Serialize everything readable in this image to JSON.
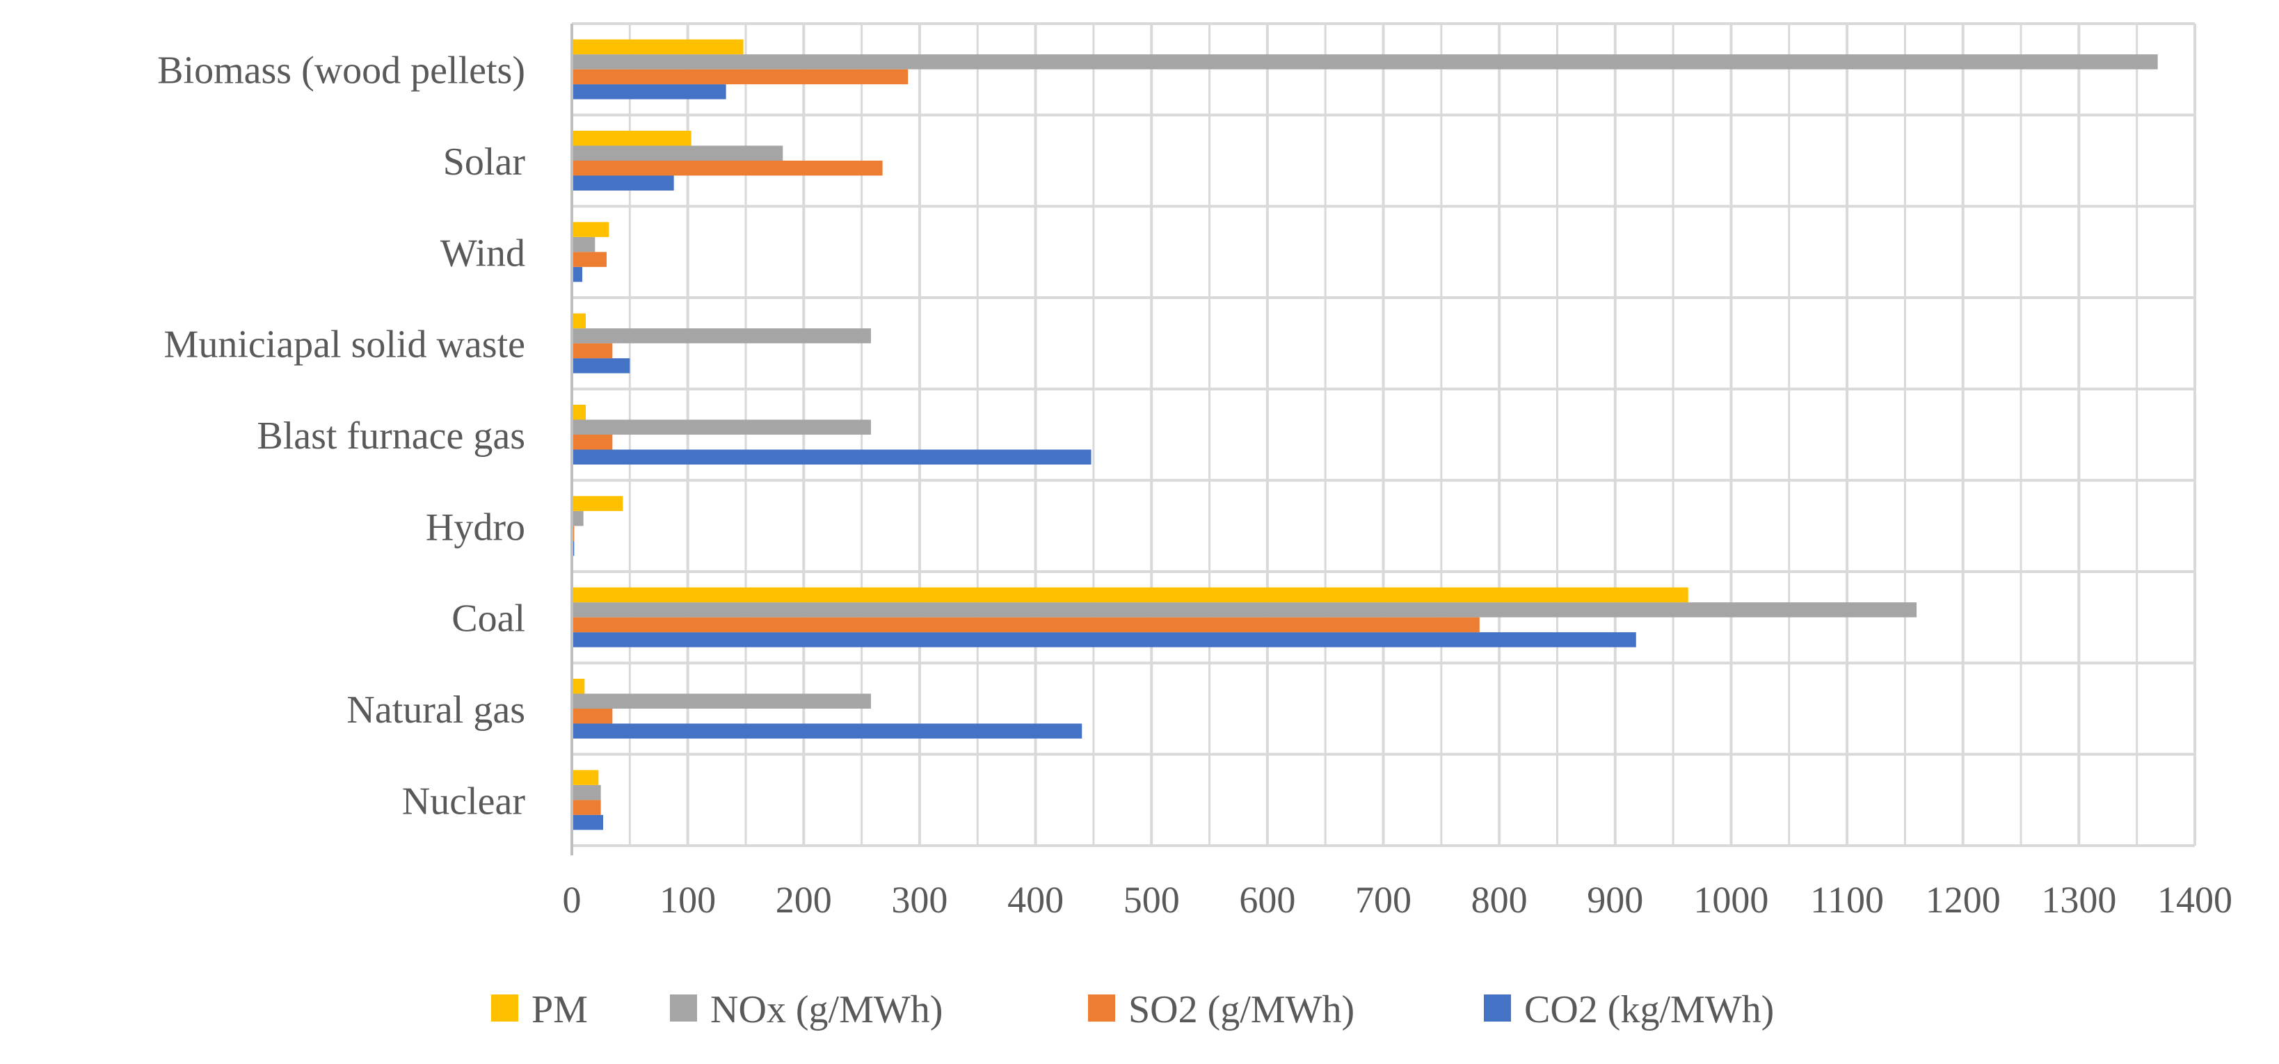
{
  "chart_data": {
    "type": "bar",
    "orientation": "horizontal",
    "title": "",
    "xlabel": "",
    "ylabel": "",
    "categories": [
      "Nuclear",
      "Natural gas",
      "Coal",
      "Hydro",
      "Blast furnace gas",
      "Municiapal solid waste",
      "Wind",
      "Solar",
      "Biomass (wood pellets)"
    ],
    "series": [
      {
        "name": "CO2 (kg/MWh)",
        "color": "#4472C4",
        "values": [
          27,
          440,
          918,
          2,
          448,
          50,
          9,
          88,
          133
        ]
      },
      {
        "name": "SO2 (g/MWh)",
        "color": "#ED7D31",
        "values": [
          25,
          35,
          783,
          2,
          35,
          35,
          30,
          268,
          290
        ]
      },
      {
        "name": "NOx (g/MWh)",
        "color": "#A5A5A5",
        "values": [
          25,
          258,
          1160,
          10,
          258,
          258,
          20,
          182,
          1368
        ]
      },
      {
        "name": "PM",
        "color": "#FFC000",
        "values": [
          23,
          11,
          963,
          44,
          12,
          12,
          32,
          103,
          148
        ]
      }
    ],
    "xlim": [
      0,
      1400
    ],
    "x_ticks": [
      "0",
      "100",
      "200",
      "300",
      "400",
      "500",
      "600",
      "700",
      "800",
      "900",
      "1000",
      "1100",
      "1200",
      "1300",
      "1400"
    ],
    "grid": true,
    "legend_position": "bottom",
    "legend_order": [
      "PM",
      "NOx (g/MWh)",
      "SO2 (g/MWh)",
      "CO2 (kg/MWh)"
    ]
  }
}
